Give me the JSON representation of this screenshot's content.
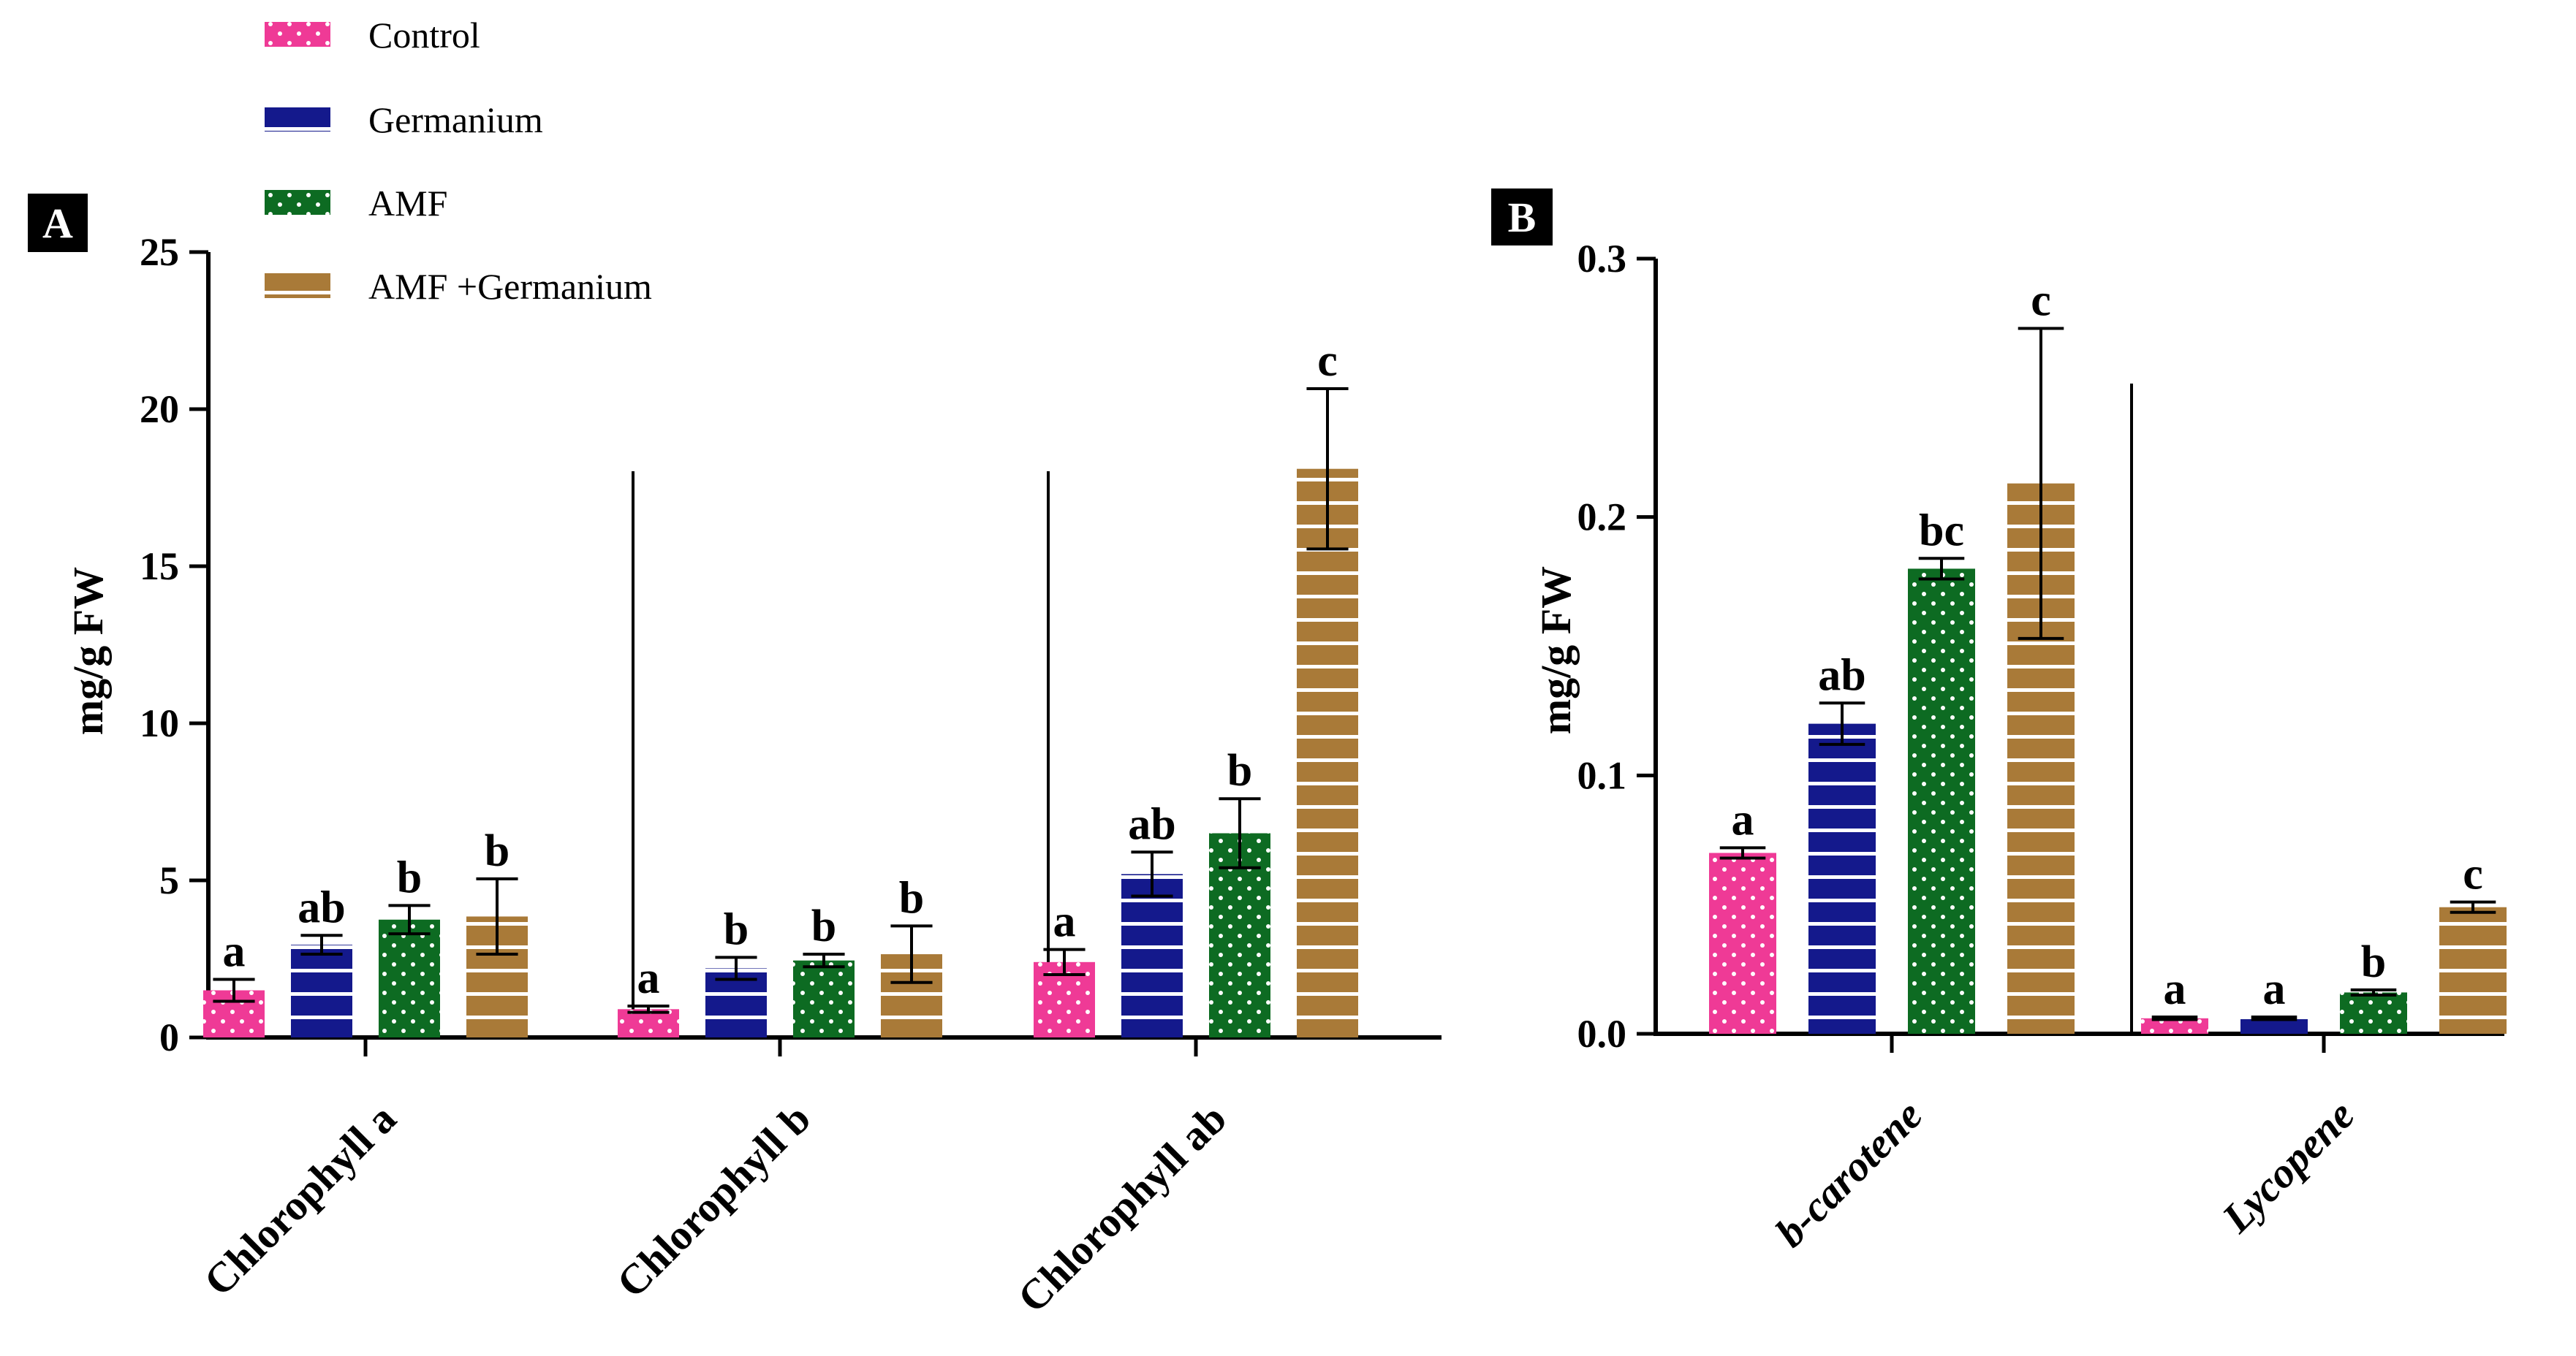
{
  "colors": {
    "control": "#ef3a96",
    "germanium": "#14198c",
    "amf": "#0d6b22",
    "amf_germanium": "#a97a38"
  },
  "legend": [
    {
      "label": "Control",
      "key": "control",
      "pattern": "dots"
    },
    {
      "label": "Germanium",
      "key": "germanium",
      "pattern": "lines"
    },
    {
      "label": "AMF",
      "key": "amf",
      "pattern": "dots"
    },
    {
      "label": "AMF +Germanium",
      "key": "amf_germanium",
      "pattern": "lines"
    }
  ],
  "chart_data": [
    {
      "panel": "A",
      "type": "bar",
      "ylabel": "mg/g FW",
      "ylim": [
        0,
        25
      ],
      "yticks": [
        0,
        5,
        10,
        15,
        20,
        25
      ],
      "ytick_labels": [
        "0",
        "5",
        "10",
        "15",
        "20",
        "25"
      ],
      "categories": [
        "Chlorophyll a",
        "Chlorophyll b",
        "Chlorophyll ab"
      ],
      "category_style": "normal",
      "series": [
        {
          "name": "Control",
          "values": [
            1.5,
            0.9,
            2.4
          ],
          "errors": [
            0.35,
            0.1,
            0.4
          ],
          "letters": [
            "a",
            "a",
            "a"
          ]
        },
        {
          "name": "Germanium",
          "values": [
            2.95,
            2.2,
            5.2
          ],
          "errors": [
            0.3,
            0.35,
            0.7
          ],
          "letters": [
            "ab",
            "b",
            "ab"
          ]
        },
        {
          "name": "AMF",
          "values": [
            3.75,
            2.45,
            6.5
          ],
          "errors": [
            0.45,
            0.2,
            1.1
          ],
          "letters": [
            "b",
            "b",
            "b"
          ]
        },
        {
          "name": "AMF +Germanium",
          "values": [
            3.85,
            2.65,
            18.1
          ],
          "errors": [
            1.2,
            0.9,
            2.55
          ],
          "letters": [
            "b",
            "b",
            "c"
          ]
        }
      ]
    },
    {
      "panel": "B",
      "type": "bar",
      "ylabel": "mg/g FW",
      "ylim": [
        0,
        0.3
      ],
      "yticks": [
        0,
        0.1,
        0.2,
        0.3
      ],
      "ytick_labels": [
        "0.0",
        "0.1",
        "0.2",
        "0.3"
      ],
      "categories": [
        "b-carotene",
        "Lycopene"
      ],
      "category_style": "italic",
      "series": [
        {
          "name": "Control",
          "values": [
            0.07,
            0.006
          ],
          "errors": [
            0.002,
            0.0005
          ],
          "letters": [
            "a",
            "a"
          ]
        },
        {
          "name": "Germanium",
          "values": [
            0.12,
            0.006
          ],
          "errors": [
            0.008,
            0.0005
          ],
          "letters": [
            "ab",
            "a"
          ]
        },
        {
          "name": "AMF",
          "values": [
            0.18,
            0.016
          ],
          "errors": [
            0.004,
            0.001
          ],
          "letters": [
            "bc",
            "b"
          ]
        },
        {
          "name": "AMF +Germanium",
          "values": [
            0.213,
            0.049
          ],
          "errors": [
            0.06,
            0.002
          ],
          "letters": [
            "c",
            "c"
          ]
        }
      ]
    }
  ]
}
